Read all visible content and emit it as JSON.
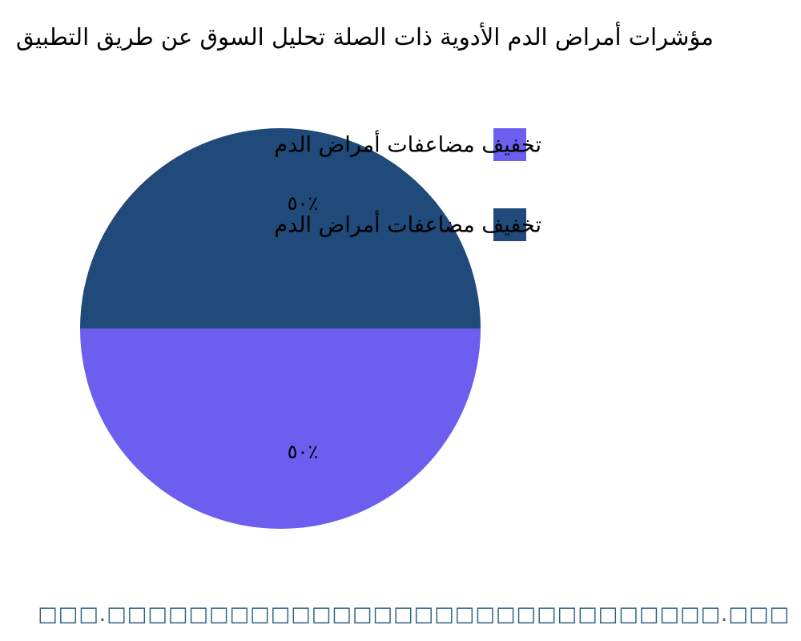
{
  "chart_data": {
    "type": "pie",
    "title": "مؤشرات أمراض الدم الأدوية ذات الصلة تحليل السوق عن طريق التطبيق",
    "categories": [
      "تخفيف مضاعفات أمراض الدم",
      "تخفيف مضاعفات أمراض الدم"
    ],
    "values": [
      50,
      50
    ],
    "value_labels": [
      "٥٠٪",
      "٥٠٪"
    ],
    "colors": [
      "#6c5ff0",
      "#1f4a7a"
    ],
    "legend": "right",
    "source": "□□□.□□□□□□□□□□□□□□□□□□□□□□□□□□□□□□.□□□"
  }
}
